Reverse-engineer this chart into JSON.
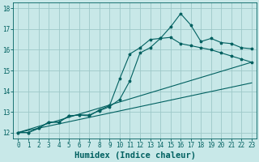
{
  "xlabel": "Humidex (Indice chaleur)",
  "ylabel": "",
  "xlim": [
    -0.5,
    23.5
  ],
  "ylim": [
    11.7,
    18.3
  ],
  "background_color": "#c8e8e8",
  "grid_color": "#9dc8c8",
  "line_color": "#006060",
  "series": [
    {
      "x": [
        0,
        1,
        2,
        3,
        4,
        5,
        6,
        7,
        8,
        9,
        10,
        11,
        12,
        13,
        14,
        15,
        16,
        17,
        18,
        19,
        20,
        21,
        22,
        23
      ],
      "y": [
        12.0,
        12.0,
        12.2,
        12.5,
        12.5,
        12.8,
        12.85,
        12.8,
        13.1,
        13.3,
        14.6,
        15.8,
        16.1,
        16.5,
        16.55,
        17.1,
        17.75,
        17.2,
        16.4,
        16.55,
        16.35,
        16.3,
        16.1,
        16.05
      ],
      "marker": true
    },
    {
      "x": [
        0,
        1,
        2,
        3,
        4,
        5,
        6,
        7,
        8,
        9,
        10,
        11,
        12,
        13,
        14,
        15,
        16,
        17,
        18,
        19,
        20,
        21,
        22,
        23
      ],
      "y": [
        12.0,
        12.0,
        12.2,
        12.5,
        12.5,
        12.8,
        12.85,
        12.85,
        13.05,
        13.25,
        13.6,
        14.5,
        15.85,
        16.1,
        16.55,
        16.6,
        16.3,
        16.2,
        16.1,
        16.0,
        15.85,
        15.7,
        15.55,
        15.4
      ],
      "marker": true
    },
    {
      "x": [
        0,
        23
      ],
      "y": [
        12.0,
        15.4
      ],
      "marker": false
    },
    {
      "x": [
        0,
        23
      ],
      "y": [
        12.0,
        14.4
      ],
      "marker": false
    }
  ],
  "xticks": [
    0,
    1,
    2,
    3,
    4,
    5,
    6,
    7,
    8,
    9,
    10,
    11,
    12,
    13,
    14,
    15,
    16,
    17,
    18,
    19,
    20,
    21,
    22,
    23
  ],
  "yticks": [
    12,
    13,
    14,
    15,
    16,
    17,
    18
  ],
  "tick_fontsize": 5.5,
  "xlabel_fontsize": 7.5,
  "marker_size": 2.5,
  "linewidth": 0.8
}
